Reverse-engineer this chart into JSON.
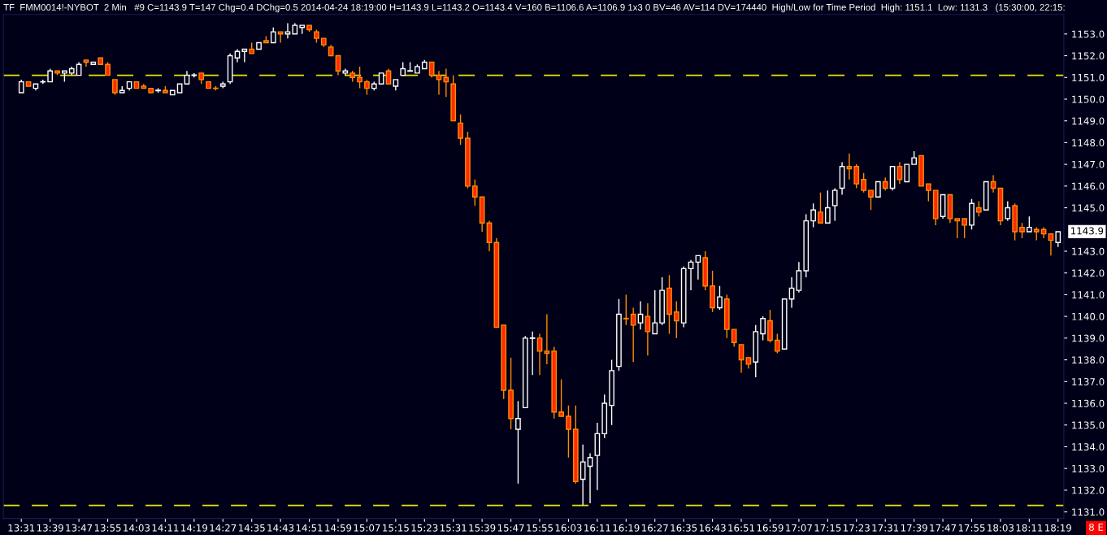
{
  "chart_data": {
    "type": "candlestick",
    "title": "TF  FMM0014!-NYBOT  2 Min   #9 C=1143.9 T=147 Chg=0.4 DChg=0.5 2014-04-24 18:19:00 H=1143.9 L=1143.2 O=1143.4 V=160 B=1106.6 A=1106.9 1x3 0 BV=46 AV=114 DV=174440  High/Low for Time Period  High: 1151.1  Low: 1131.3   (15:30:00, 22:15:",
    "categories": [
      "13:31",
      null,
      null,
      null,
      "13:39",
      null,
      null,
      null,
      "13:47",
      null,
      null,
      null,
      "13:55",
      null,
      null,
      null,
      "14:03",
      null,
      null,
      null,
      "14:11",
      null,
      null,
      null,
      "14:19",
      null,
      null,
      null,
      "14:27",
      null,
      null,
      null,
      "14:35",
      null,
      null,
      null,
      "14:43",
      null,
      null,
      null,
      "14:51",
      null,
      null,
      null,
      "14:59",
      null,
      null,
      null,
      "15:07",
      null,
      null,
      null,
      "15:15",
      null,
      null,
      null,
      "15:23",
      null,
      null,
      null,
      "15:31",
      null,
      null,
      null,
      "15:39",
      null,
      null,
      null,
      "15:47",
      null,
      null,
      null,
      "15:55",
      null,
      null,
      null,
      "16:03",
      null,
      null,
      null,
      "16:11",
      null,
      null,
      null,
      "16:19",
      null,
      null,
      null,
      "16:27",
      null,
      null,
      null,
      "16:35",
      null,
      null,
      null,
      "16:43",
      null,
      null,
      null,
      "16:51",
      null,
      null,
      null,
      "16:59",
      null,
      null,
      null,
      "17:07",
      null,
      null,
      null,
      "17:15",
      null,
      null,
      null,
      "17:23",
      null,
      null,
      null,
      "17:31",
      null,
      null,
      null,
      "17:39",
      null,
      null,
      null,
      "17:47",
      null,
      null,
      null,
      "17:55",
      null,
      null,
      null,
      "18:03",
      null,
      null,
      null,
      "18:11",
      null,
      null,
      null,
      "18:19"
    ],
    "ohlc": [
      [
        1150.3,
        1150.9,
        1150.3,
        1150.8
      ],
      [
        1150.8,
        1150.8,
        1150.6,
        1150.6
      ],
      [
        1150.5,
        1150.7,
        1150.4,
        1150.7
      ],
      [
        1150.8,
        1150.9,
        1150.7,
        1150.8
      ],
      [
        1150.8,
        1151.4,
        1150.8,
        1151.3
      ],
      [
        1151.3,
        1151.3,
        1151.1,
        1151.2
      ],
      [
        1151.2,
        1151.3,
        1150.8,
        1151.3
      ],
      [
        1151.2,
        1151.5,
        1151.1,
        1151.4
      ],
      [
        1151.1,
        1151.7,
        1151.1,
        1151.6
      ],
      [
        1151.8,
        1151.8,
        1151.5,
        1151.7
      ],
      [
        1151.6,
        1151.7,
        1151.6,
        1151.7
      ],
      [
        1151.9,
        1151.9,
        1151.6,
        1151.6
      ],
      [
        1151.6,
        1151.7,
        1151.1,
        1151.1
      ],
      [
        1150.9,
        1150.9,
        1150.2,
        1150.3
      ],
      [
        1150.3,
        1150.6,
        1150.3,
        1150.4
      ],
      [
        1150.5,
        1150.8,
        1150.4,
        1150.8
      ],
      [
        1150.8,
        1150.8,
        1150.5,
        1150.5
      ],
      [
        1150.6,
        1150.7,
        1150.5,
        1150.5
      ],
      [
        1150.5,
        1150.5,
        1150.3,
        1150.3
      ],
      [
        1150.4,
        1150.5,
        1150.3,
        1150.4
      ],
      [
        1150.4,
        1150.6,
        1150.3,
        1150.3
      ],
      [
        1150.2,
        1150.4,
        1150.2,
        1150.4
      ],
      [
        1150.3,
        1150.7,
        1150.3,
        1150.7
      ],
      [
        1150.7,
        1151.3,
        1150.7,
        1151.1
      ],
      [
        1151.1,
        1151.2,
        1151.0,
        1151.1
      ],
      [
        1151.2,
        1151.2,
        1150.7,
        1150.9
      ],
      [
        1150.8,
        1150.8,
        1150.5,
        1150.5
      ],
      [
        1150.5,
        1150.6,
        1150.4,
        1150.5
      ],
      [
        1150.6,
        1150.8,
        1150.5,
        1150.7
      ],
      [
        1150.8,
        1152.1,
        1150.7,
        1152.0
      ],
      [
        1151.9,
        1152.3,
        1151.7,
        1152.2
      ],
      [
        1152.2,
        1152.3,
        1151.7,
        1152.3
      ],
      [
        1152.3,
        1152.6,
        1152.1,
        1152.1
      ],
      [
        1152.3,
        1152.6,
        1152.3,
        1152.6
      ],
      [
        1152.7,
        1152.9,
        1152.6,
        1152.6
      ],
      [
        1152.6,
        1153.3,
        1152.6,
        1153.1
      ],
      [
        1153.1,
        1153.1,
        1152.6,
        1153.0
      ],
      [
        1153.0,
        1153.5,
        1152.8,
        1153.1
      ],
      [
        1153.0,
        1153.5,
        1153.0,
        1153.4
      ],
      [
        1153.3,
        1153.4,
        1153.0,
        1153.4
      ],
      [
        1153.4,
        1153.4,
        1153.1,
        1153.2
      ],
      [
        1153.1,
        1153.2,
        1152.6,
        1152.8
      ],
      [
        1152.8,
        1152.8,
        1152.4,
        1152.5
      ],
      [
        1152.4,
        1152.5,
        1152.0,
        1152.0
      ],
      [
        1152.0,
        1152.0,
        1151.1,
        1151.3
      ],
      [
        1151.2,
        1151.4,
        1151.1,
        1151.3
      ],
      [
        1151.2,
        1151.3,
        1150.8,
        1151.0
      ],
      [
        1151.0,
        1151.5,
        1150.5,
        1150.8
      ],
      [
        1150.8,
        1150.9,
        1150.2,
        1150.5
      ],
      [
        1150.5,
        1150.8,
        1150.4,
        1150.7
      ],
      [
        1150.7,
        1151.2,
        1150.7,
        1151.2
      ],
      [
        1151.3,
        1151.4,
        1150.7,
        1150.7
      ],
      [
        1150.6,
        1150.9,
        1150.4,
        1150.9
      ],
      [
        1151.1,
        1151.7,
        1151.1,
        1151.4
      ],
      [
        1151.3,
        1151.7,
        1151.3,
        1151.3
      ],
      [
        1151.2,
        1151.6,
        1151.2,
        1151.5
      ],
      [
        1151.4,
        1151.8,
        1151.4,
        1151.7
      ],
      [
        1151.7,
        1151.7,
        1151.0,
        1151.1
      ],
      [
        1151.1,
        1151.3,
        1150.2,
        1150.9
      ],
      [
        1151.0,
        1151.4,
        1150.1,
        1150.8
      ],
      [
        1150.7,
        1151.1,
        1149.0,
        1149.0
      ],
      [
        1148.9,
        1149.3,
        1147.9,
        1148.2
      ],
      [
        1148.2,
        1148.5,
        1145.9,
        1146.0
      ],
      [
        1146.0,
        1146.3,
        1145.1,
        1145.5
      ],
      [
        1145.5,
        1145.5,
        1143.9,
        1144.3
      ],
      [
        1144.3,
        1144.4,
        1143.0,
        1143.4
      ],
      [
        1143.4,
        1143.6,
        1139.5,
        1139.5
      ],
      [
        1139.6,
        1139.6,
        1136.2,
        1136.6
      ],
      [
        1136.6,
        1138.1,
        1134.8,
        1135.3
      ],
      [
        1134.8,
        1136.1,
        1132.3,
        1135.3
      ],
      [
        1135.8,
        1139.1,
        1135.8,
        1139.0
      ],
      [
        1139.0,
        1139.3,
        1137.3,
        1139.0
      ],
      [
        1139.0,
        1139.2,
        1137.3,
        1138.4
      ],
      [
        1138.4,
        1140.1,
        1137.8,
        1138.3
      ],
      [
        1138.4,
        1138.6,
        1135.3,
        1135.6
      ],
      [
        1135.6,
        1137.1,
        1135.4,
        1135.4
      ],
      [
        1135.4,
        1135.9,
        1133.5,
        1134.8
      ],
      [
        1134.8,
        1135.9,
        1132.3,
        1132.4
      ],
      [
        1132.5,
        1134.1,
        1131.3,
        1133.3
      ],
      [
        1133.1,
        1133.7,
        1131.4,
        1133.5
      ],
      [
        1133.6,
        1135.1,
        1132.0,
        1134.6
      ],
      [
        1134.6,
        1136.4,
        1134.4,
        1136.0
      ],
      [
        1135.9,
        1138.0,
        1135.0,
        1137.5
      ],
      [
        1137.7,
        1140.8,
        1137.5,
        1140.1
      ],
      [
        1139.9,
        1141.0,
        1139.6,
        1139.9
      ],
      [
        1140.1,
        1140.4,
        1137.9,
        1139.6
      ],
      [
        1139.7,
        1140.7,
        1139.4,
        1140.1
      ],
      [
        1140.0,
        1140.6,
        1138.2,
        1139.3
      ],
      [
        1139.2,
        1141.2,
        1139.2,
        1139.7
      ],
      [
        1139.7,
        1141.8,
        1139.6,
        1141.2
      ],
      [
        1141.3,
        1141.9,
        1139.2,
        1140.1
      ],
      [
        1140.2,
        1140.7,
        1139.0,
        1139.8
      ],
      [
        1139.7,
        1142.3,
        1139.5,
        1142.2
      ],
      [
        1142.2,
        1142.6,
        1141.2,
        1142.5
      ],
      [
        1142.5,
        1142.8,
        1141.7,
        1142.8
      ],
      [
        1142.7,
        1143.0,
        1141.2,
        1141.4
      ],
      [
        1141.4,
        1142.1,
        1140.2,
        1140.4
      ],
      [
        1140.4,
        1141.4,
        1140.3,
        1140.9
      ],
      [
        1140.8,
        1141.0,
        1139.0,
        1139.4
      ],
      [
        1139.4,
        1139.4,
        1138.6,
        1138.8
      ],
      [
        1138.7,
        1138.7,
        1137.4,
        1138.0
      ],
      [
        1138.1,
        1138.1,
        1137.6,
        1137.8
      ],
      [
        1137.9,
        1139.6,
        1137.2,
        1139.3
      ],
      [
        1139.2,
        1140.0,
        1138.9,
        1139.9
      ],
      [
        1139.8,
        1140.3,
        1138.8,
        1138.9
      ],
      [
        1138.9,
        1139.2,
        1138.3,
        1138.4
      ],
      [
        1138.5,
        1140.8,
        1138.5,
        1140.8
      ],
      [
        1140.8,
        1141.8,
        1140.4,
        1141.3
      ],
      [
        1141.2,
        1142.5,
        1141.1,
        1142.1
      ],
      [
        1142.1,
        1144.7,
        1141.8,
        1144.4
      ],
      [
        1144.4,
        1145.2,
        1144.1,
        1144.9
      ],
      [
        1144.8,
        1145.7,
        1144.3,
        1144.3
      ],
      [
        1144.3,
        1145.8,
        1144.3,
        1145.0
      ],
      [
        1145.1,
        1145.9,
        1144.4,
        1145.8
      ],
      [
        1145.9,
        1147.1,
        1145.6,
        1146.9
      ],
      [
        1146.9,
        1147.5,
        1146.3,
        1146.8
      ],
      [
        1146.9,
        1147.0,
        1145.9,
        1146.1
      ],
      [
        1146.3,
        1146.6,
        1145.7,
        1145.8
      ],
      [
        1145.8,
        1145.8,
        1144.9,
        1145.5
      ],
      [
        1145.5,
        1146.2,
        1145.5,
        1146.2
      ],
      [
        1146.2,
        1146.4,
        1145.8,
        1145.9
      ],
      [
        1145.9,
        1146.9,
        1145.8,
        1146.9
      ],
      [
        1146.9,
        1147.1,
        1146.1,
        1146.3
      ],
      [
        1146.2,
        1147.0,
        1146.2,
        1147.0
      ],
      [
        1147.0,
        1147.6,
        1147.0,
        1147.3
      ],
      [
        1147.4,
        1147.4,
        1146.0,
        1146.0
      ],
      [
        1146.1,
        1146.1,
        1145.3,
        1145.8
      ],
      [
        1145.8,
        1145.8,
        1144.2,
        1144.5
      ],
      [
        1144.6,
        1145.6,
        1144.5,
        1145.6
      ],
      [
        1145.6,
        1145.6,
        1144.3,
        1144.5
      ],
      [
        1144.5,
        1144.5,
        1143.6,
        1144.4
      ],
      [
        1144.5,
        1144.5,
        1143.6,
        1144.2
      ],
      [
        1144.2,
        1145.4,
        1144.0,
        1145.2
      ],
      [
        1145.0,
        1145.3,
        1144.6,
        1144.8
      ],
      [
        1144.9,
        1146.2,
        1144.9,
        1146.2
      ],
      [
        1146.2,
        1146.5,
        1145.7,
        1145.9
      ],
      [
        1145.9,
        1145.9,
        1144.2,
        1144.4
      ],
      [
        1144.5,
        1145.3,
        1144.4,
        1145.0
      ],
      [
        1145.1,
        1145.2,
        1143.5,
        1143.9
      ],
      [
        1144.1,
        1144.3,
        1143.6,
        1143.9
      ],
      [
        1143.9,
        1144.6,
        1143.9,
        1144.1
      ],
      [
        1144.0,
        1144.1,
        1143.5,
        1143.9
      ],
      [
        1144.0,
        1144.1,
        1143.6,
        1143.8
      ],
      [
        1143.8,
        1143.8,
        1142.8,
        1143.5
      ],
      [
        1143.4,
        1143.9,
        1143.2,
        1143.9
      ]
    ],
    "ylim": [
      1130.7,
      1153.9
    ],
    "yticks": [
      {
        "value": 1131,
        "label": "1131.0"
      },
      {
        "value": 1132,
        "label": "1132.0"
      },
      {
        "value": 1133,
        "label": "1133.0"
      },
      {
        "value": 1134,
        "label": "1134.0"
      },
      {
        "value": 1135,
        "label": "1135.0"
      },
      {
        "value": 1136,
        "label": "1136.0"
      },
      {
        "value": 1137,
        "label": "1137.0"
      },
      {
        "value": 1138,
        "label": "1138.0"
      },
      {
        "value": 1139,
        "label": "1139.0"
      },
      {
        "value": 1140,
        "label": "1140.0"
      },
      {
        "value": 1141,
        "label": "1141.0"
      },
      {
        "value": 1142,
        "label": "1142.0"
      },
      {
        "value": 1143,
        "label": "1143.0"
      },
      {
        "value": 1145,
        "label": "1145.0"
      },
      {
        "value": 1146,
        "label": "1146.0"
      },
      {
        "value": 1147,
        "label": "1147.0"
      },
      {
        "value": 1148,
        "label": "1148.0"
      },
      {
        "value": 1149,
        "label": "1149.0"
      },
      {
        "value": 1150,
        "label": "1150.0"
      },
      {
        "value": 1151,
        "label": "1151.0"
      },
      {
        "value": 1152,
        "label": "1152.0"
      },
      {
        "value": 1153,
        "label": "1153.0"
      }
    ],
    "colors": [
      "#ffffff",
      "#ff2a00",
      "#ffffff",
      "#ffffff",
      "#ffffff",
      "#ff2a00",
      "#ffffff",
      "#ffffff",
      "#ffffff",
      "#ff2a00",
      "#ffffff",
      "#ff2a00",
      "#ff2a00",
      "#ff2a00",
      "#ffffff",
      "#ffffff",
      "#ff2a00",
      "#ff2a00",
      "#ff2a00",
      "#ffffff",
      "#ff2a00",
      "#ffffff",
      "#ffffff",
      "#ffffff",
      "#ffffff",
      "#ff2a00",
      "#ff2a00",
      "#ff2a00",
      "#ffffff",
      "#ffffff",
      "#ffffff",
      "#ffffff",
      "#ff2a00",
      "#ffffff",
      "#ff2a00",
      "#ffffff",
      "#ff2a00",
      "#ffffff",
      "#ffffff",
      "#ffffff",
      "#ff2a00",
      "#ff2a00",
      "#ff2a00",
      "#ff2a00",
      "#ff2a00",
      "#ffffff",
      "#ff2a00",
      "#ff2a00",
      "#ff2a00",
      "#ffffff",
      "#ffffff",
      "#ff2a00",
      "#ffffff",
      "#ffffff",
      "#ffffff",
      "#ffffff",
      "#ffffff",
      "#ff2a00",
      "#ff2a00",
      "#ff2a00",
      "#ff2a00",
      "#ff2a00",
      "#ff2a00",
      "#ff2a00",
      "#ff2a00",
      "#ff2a00",
      "#ff2a00",
      "#ff2a00",
      "#ff2a00",
      "#ffffff",
      "#ffffff",
      "#ffffff",
      "#ff2a00",
      "#ff2a00",
      "#ff2a00",
      "#ff2a00",
      "#ff2a00",
      "#ff2a00",
      "#ffffff",
      "#ffffff",
      "#ffffff",
      "#ffffff",
      "#ffffff",
      "#ffffff",
      "#ff2a00",
      "#ff2a00",
      "#ffffff",
      "#ff2a00",
      "#ffffff",
      "#ffffff",
      "#ff2a00",
      "#ff2a00",
      "#ffffff",
      "#ffffff",
      "#ffffff",
      "#ff2a00",
      "#ff2a00",
      "#ffffff",
      "#ff2a00",
      "#ff2a00",
      "#ff2a00",
      "#ff2a00",
      "#ffffff",
      "#ffffff",
      "#ff2a00",
      "#ff2a00",
      "#ffffff",
      "#ffffff",
      "#ffffff",
      "#ffffff",
      "#ffffff",
      "#ff2a00",
      "#ffffff",
      "#ffffff",
      "#ffffff",
      "#ff2a00",
      "#ff2a00",
      "#ff2a00",
      "#ff2a00",
      "#ffffff",
      "#ff2a00",
      "#ffffff",
      "#ff2a00",
      "#ffffff",
      "#ffffff",
      "#ff2a00",
      "#ff2a00",
      "#ff2a00",
      "#ffffff",
      "#ff2a00",
      "#ff2a00",
      "#ff2a00",
      "#ffffff",
      "#ff2a00",
      "#ffffff",
      "#ff2a00",
      "#ff2a00",
      "#ffffff",
      "#ff2a00",
      "#ff2a00",
      "#ffffff",
      "#ff2a00",
      "#ff2a00",
      "#ff2a00",
      "#ffffff"
    ],
    "ref_lines": [
      {
        "axis": "y",
        "value": 1151.1,
        "label": null,
        "color": "#e6e600",
        "line_style": "dashed"
      },
      {
        "axis": "y",
        "value": 1131.3,
        "label": null,
        "color": "#e6e600",
        "line_style": "dashed"
      }
    ],
    "annotations": [
      "1143.9",
      "8 E"
    ],
    "grid": false,
    "legend": false
  }
}
